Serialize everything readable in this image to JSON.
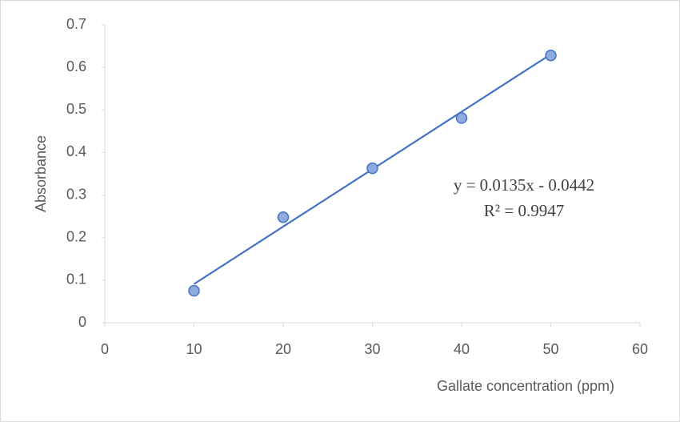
{
  "chart_data": {
    "type": "scatter",
    "x_label": "Gallate concentration  (ppm)",
    "y_label": "Absorbance",
    "x": [
      10,
      20,
      30,
      40,
      50
    ],
    "series": [
      {
        "color": "#4472c4",
        "fill": "#8faadc",
        "values": [
          0.075,
          0.248,
          0.363,
          0.481,
          0.628
        ]
      }
    ],
    "trendline": {
      "slope": 0.0135,
      "intercept": -0.0442,
      "equation": "y = 0.0135x - 0.0442",
      "r2": "R² = 0.9947"
    },
    "xlim": [
      0,
      60
    ],
    "xticks": [
      0,
      10,
      20,
      30,
      40,
      50,
      60
    ],
    "ylim": [
      0,
      0.7
    ],
    "yticks": [
      0,
      0.1,
      0.2,
      0.3,
      0.4,
      0.5,
      0.6,
      0.7
    ],
    "grid": false
  }
}
